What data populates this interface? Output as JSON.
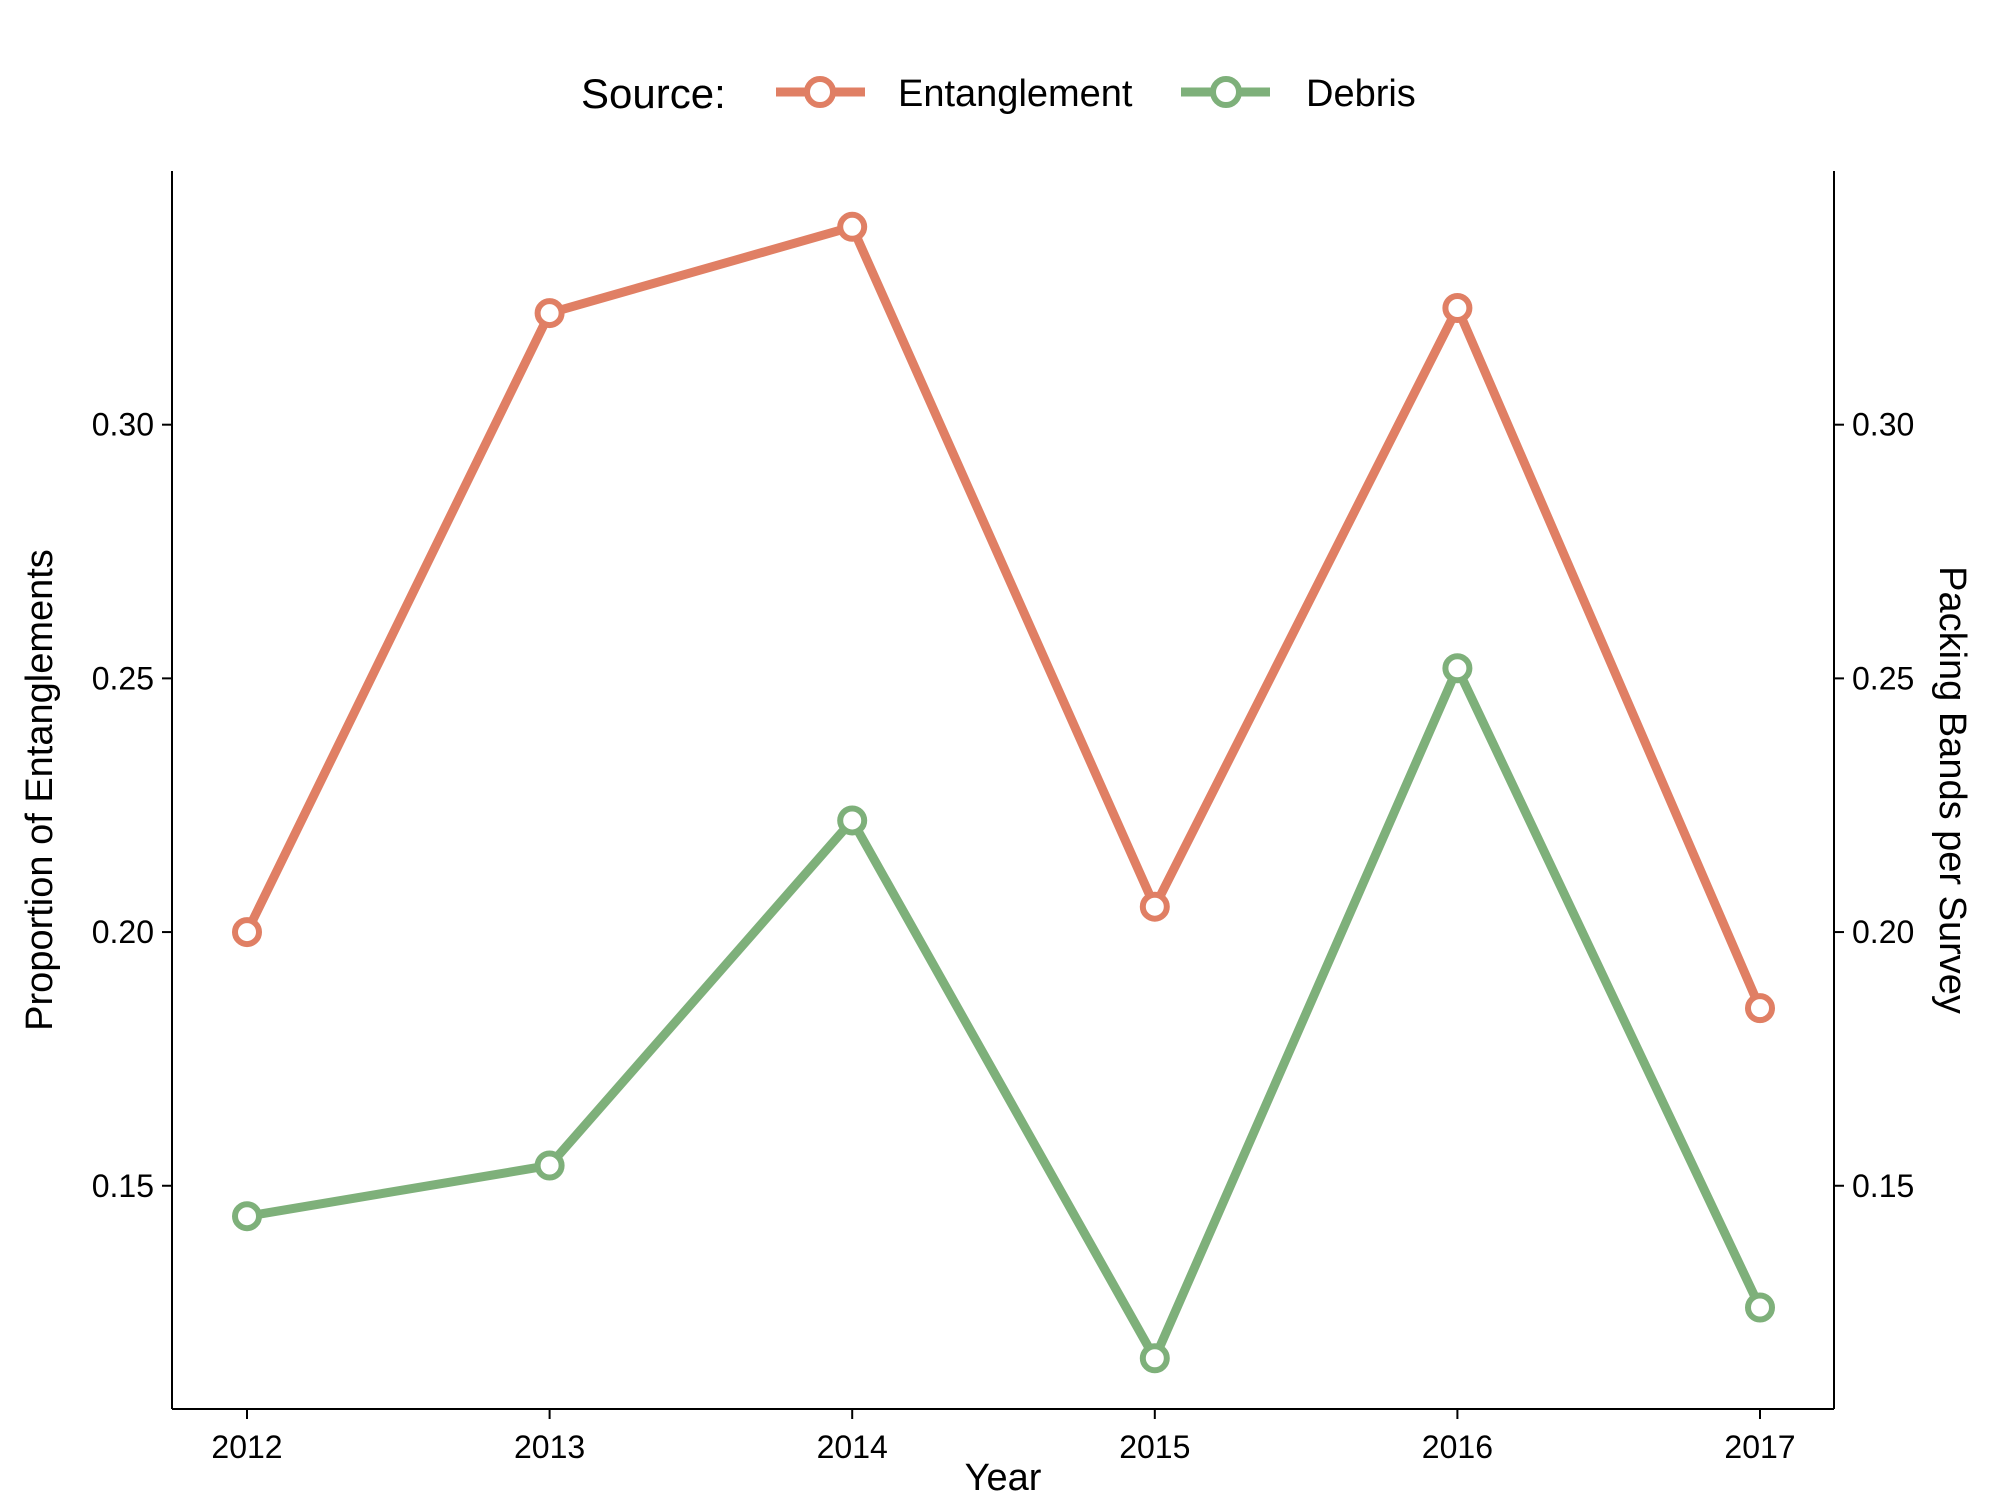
{
  "chart_data": {
    "type": "line",
    "title": "",
    "xlabel": "Year",
    "ylabel": "Proportion of Entanglements",
    "y2label": "Packing Bands per Survey",
    "legend": {
      "title": "Source:",
      "placement": "top",
      "entries": [
        "Entanglement",
        "Debris"
      ]
    },
    "x": [
      "2012",
      "2013",
      "2014",
      "2015",
      "2016",
      "2017"
    ],
    "ylim": [
      0.106,
      0.35
    ],
    "y_ticks": [
      0.15,
      0.2,
      0.25,
      0.3
    ],
    "y_tick_labels": [
      "0.15",
      "0.20",
      "0.25",
      "0.30"
    ],
    "y2_ticks": [
      0.15,
      0.2,
      0.25,
      0.3
    ],
    "y2_tick_labels": [
      "0.15",
      "0.20",
      "0.25",
      "0.30"
    ],
    "grid": false,
    "series": [
      {
        "name": "Entanglement",
        "color": "#E07F64",
        "values": [
          0.2,
          0.322,
          0.339,
          0.205,
          0.323,
          0.185
        ]
      },
      {
        "name": "Debris",
        "color": "#7EB07A",
        "values": [
          0.144,
          0.154,
          0.222,
          0.116,
          0.252,
          0.126
        ]
      }
    ]
  }
}
